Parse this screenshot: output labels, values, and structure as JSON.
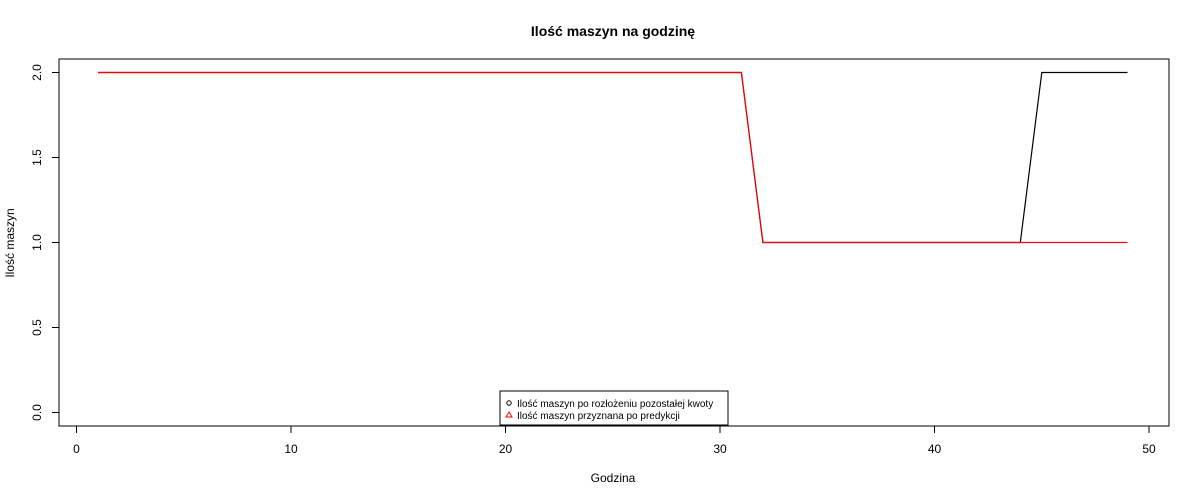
{
  "chart_data": {
    "type": "line",
    "title": "Ilość maszyn na godzinę",
    "xlabel": "Godzina",
    "ylabel": "Ilość maszyn",
    "xlim": [
      0,
      50
    ],
    "ylim": [
      0,
      2
    ],
    "x_ticks": [
      "0",
      "10",
      "20",
      "30",
      "40",
      "50"
    ],
    "y_ticks": [
      "0.0",
      "0.5",
      "1.0",
      "1.5",
      "2.0"
    ],
    "grid": false,
    "legend_position": "bottom-center",
    "series": [
      {
        "name": "Ilość maszyn po rozłożeniu pozostałej kwoty",
        "color": "#000000",
        "marker": "circle",
        "x": [
          1,
          2,
          3,
          4,
          5,
          6,
          7,
          8,
          9,
          10,
          11,
          12,
          13,
          14,
          15,
          16,
          17,
          18,
          19,
          20,
          21,
          22,
          23,
          24,
          25,
          26,
          27,
          28,
          29,
          30,
          31,
          32,
          33,
          34,
          35,
          36,
          37,
          38,
          39,
          40,
          41,
          42,
          43,
          44,
          45,
          46,
          47,
          48,
          49
        ],
        "values": [
          2,
          2,
          2,
          2,
          2,
          2,
          2,
          2,
          2,
          2,
          2,
          2,
          2,
          2,
          2,
          2,
          2,
          2,
          2,
          2,
          2,
          2,
          2,
          2,
          2,
          2,
          2,
          2,
          2,
          2,
          2,
          1,
          1,
          1,
          1,
          1,
          1,
          1,
          1,
          1,
          1,
          1,
          1,
          1,
          2,
          2,
          2,
          2,
          2
        ]
      },
      {
        "name": "Ilość maszyn przyznana po predykcji",
        "color": "#ff0000",
        "marker": "triangle",
        "x": [
          1,
          2,
          3,
          4,
          5,
          6,
          7,
          8,
          9,
          10,
          11,
          12,
          13,
          14,
          15,
          16,
          17,
          18,
          19,
          20,
          21,
          22,
          23,
          24,
          25,
          26,
          27,
          28,
          29,
          30,
          31,
          32,
          33,
          34,
          35,
          36,
          37,
          38,
          39,
          40,
          41,
          42,
          43,
          44,
          45,
          46,
          47,
          48,
          49
        ],
        "values": [
          2,
          2,
          2,
          2,
          2,
          2,
          2,
          2,
          2,
          2,
          2,
          2,
          2,
          2,
          2,
          2,
          2,
          2,
          2,
          2,
          2,
          2,
          2,
          2,
          2,
          2,
          2,
          2,
          2,
          2,
          2,
          1,
          1,
          1,
          1,
          1,
          1,
          1,
          1,
          1,
          1,
          1,
          1,
          1,
          1,
          1,
          1,
          1,
          1
        ]
      }
    ]
  }
}
